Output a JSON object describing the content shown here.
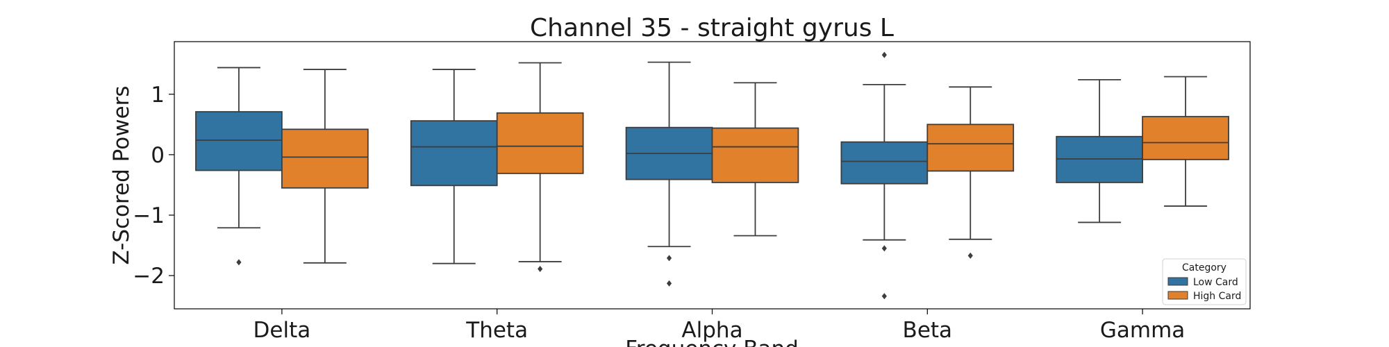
{
  "chart_data": {
    "type": "box",
    "title": "Channel 35 - straight gyrus L",
    "xlabel": "Frequency Band",
    "ylabel": "Z-Scored Powers",
    "categories": [
      "Delta",
      "Theta",
      "Alpha",
      "Beta",
      "Gamma"
    ],
    "ylim": [
      -2.55,
      1.87
    ],
    "yticks": [
      {
        "value": 1,
        "label": "1"
      },
      {
        "value": 0,
        "label": "0"
      },
      {
        "value": -1,
        "label": "−1"
      },
      {
        "value": -2,
        "label": "−2"
      }
    ],
    "grid": false,
    "legend": {
      "title": "Category",
      "placement": "bottom-right"
    },
    "series": [
      {
        "name": "Low Card",
        "color": "#3274a1",
        "boxes": [
          {
            "whisker_low": -1.21,
            "q1": -0.26,
            "median": 0.24,
            "q3": 0.71,
            "whisker_high": 1.44,
            "outliers": [
              -1.78
            ]
          },
          {
            "whisker_low": -1.8,
            "q1": -0.51,
            "median": 0.13,
            "q3": 0.56,
            "whisker_high": 1.41,
            "outliers": []
          },
          {
            "whisker_low": -1.52,
            "q1": -0.41,
            "median": 0.02,
            "q3": 0.45,
            "whisker_high": 1.53,
            "outliers": [
              -1.71,
              -2.13
            ]
          },
          {
            "whisker_low": -1.41,
            "q1": -0.48,
            "median": -0.11,
            "q3": 0.21,
            "whisker_high": 1.16,
            "outliers": [
              1.65,
              -1.55,
              -2.34
            ]
          },
          {
            "whisker_low": -1.12,
            "q1": -0.46,
            "median": -0.07,
            "q3": 0.3,
            "whisker_high": 1.24,
            "outliers": []
          }
        ]
      },
      {
        "name": "High Card",
        "color": "#e1812c",
        "boxes": [
          {
            "whisker_low": -1.79,
            "q1": -0.55,
            "median": -0.04,
            "q3": 0.42,
            "whisker_high": 1.41,
            "outliers": []
          },
          {
            "whisker_low": -1.77,
            "q1": -0.31,
            "median": 0.14,
            "q3": 0.69,
            "whisker_high": 1.52,
            "outliers": [
              -1.89
            ]
          },
          {
            "whisker_low": -1.34,
            "q1": -0.46,
            "median": 0.13,
            "q3": 0.44,
            "whisker_high": 1.19,
            "outliers": []
          },
          {
            "whisker_low": -1.4,
            "q1": -0.27,
            "median": 0.18,
            "q3": 0.5,
            "whisker_high": 1.12,
            "outliers": [
              -1.67
            ]
          },
          {
            "whisker_low": -0.85,
            "q1": -0.08,
            "median": 0.2,
            "q3": 0.63,
            "whisker_high": 1.29,
            "outliers": []
          }
        ]
      }
    ]
  }
}
